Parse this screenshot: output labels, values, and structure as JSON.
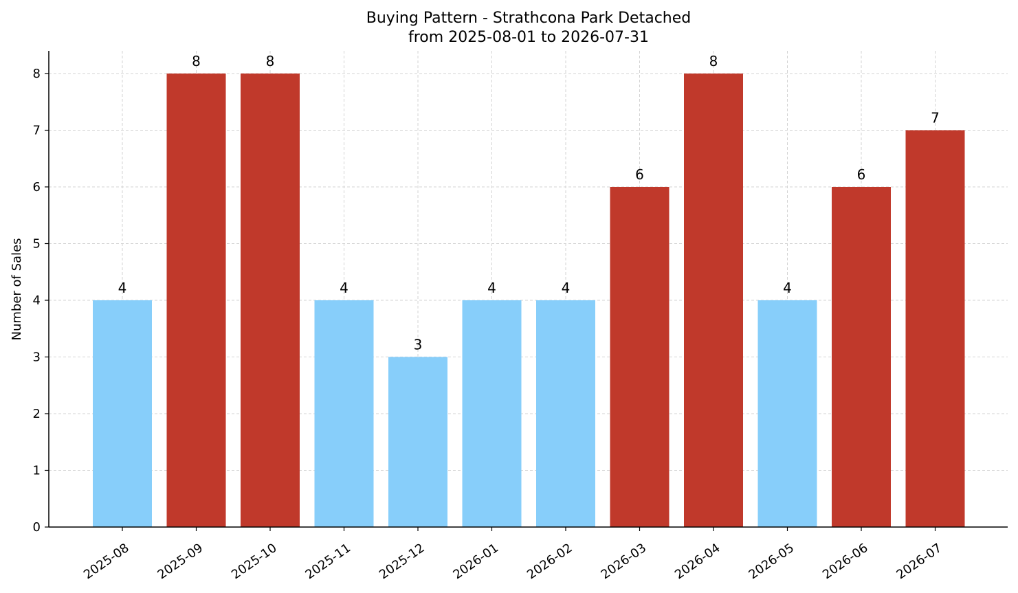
{
  "chart_data": {
    "type": "bar",
    "title": "Buying Pattern - Strathcona Park Detached",
    "subtitle": "from 2025-08-01 to 2026-07-31",
    "xlabel": "",
    "ylabel": "Number of Sales",
    "categories": [
      "2025-08",
      "2025-09",
      "2025-10",
      "2025-11",
      "2025-12",
      "2026-01",
      "2026-02",
      "2026-03",
      "2026-04",
      "2026-05",
      "2026-06",
      "2026-07"
    ],
    "values": [
      4,
      8,
      8,
      4,
      3,
      4,
      4,
      6,
      8,
      4,
      6,
      7
    ],
    "bar_colors": [
      "#87CEFA",
      "#C0392B",
      "#C0392B",
      "#87CEFA",
      "#87CEFA",
      "#87CEFA",
      "#87CEFA",
      "#C0392B",
      "#C0392B",
      "#87CEFA",
      "#C0392B",
      "#C0392B"
    ],
    "ylim": [
      0,
      8.4
    ],
    "yticks": [
      0,
      1,
      2,
      3,
      4,
      5,
      6,
      7,
      8
    ],
    "grid": true,
    "data_labels": true
  }
}
